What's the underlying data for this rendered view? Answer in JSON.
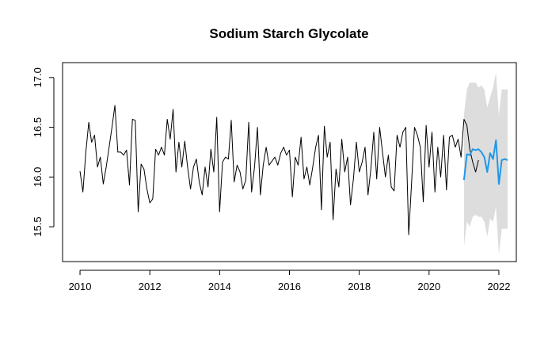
{
  "chart_data": {
    "type": "line",
    "title": "Sodium Starch Glycolate",
    "xlabel": "",
    "ylabel": "",
    "xlim": [
      2009.5,
      2022.5
    ],
    "ylim": [
      15.15,
      17.15
    ],
    "x_ticks": [
      {
        "value": 2010,
        "label": "2010"
      },
      {
        "value": 2012,
        "label": "2012"
      },
      {
        "value": 2014,
        "label": "2014"
      },
      {
        "value": 2016,
        "label": "2016"
      },
      {
        "value": 2018,
        "label": "2018"
      },
      {
        "value": 2020,
        "label": "2020"
      },
      {
        "value": 2022,
        "label": "2022"
      }
    ],
    "y_ticks": [
      {
        "value": 15.5,
        "label": "15.5"
      },
      {
        "value": 16.0,
        "label": "16.0"
      },
      {
        "value": 16.5,
        "label": "16.5"
      },
      {
        "value": 17.0,
        "label": "17.0"
      }
    ],
    "grid": false,
    "legend": "none",
    "colors": {
      "history": "#000000",
      "forecast": "#2297e6",
      "band": "#dddddd",
      "axis": "#000000"
    },
    "series": [
      {
        "role": "history",
        "x_start": 2010.0,
        "x_step": 0.0833333,
        "values": [
          16.06,
          15.85,
          16.25,
          16.55,
          16.35,
          16.42,
          16.1,
          16.2,
          15.93,
          16.1,
          16.3,
          16.5,
          16.72,
          16.25,
          16.25,
          16.22,
          16.27,
          15.92,
          16.58,
          16.57,
          15.65,
          16.13,
          16.08,
          15.88,
          15.74,
          15.78,
          16.28,
          16.22,
          16.3,
          16.22,
          16.58,
          16.38,
          16.68,
          16.05,
          16.35,
          16.1,
          16.36,
          16.1,
          15.88,
          16.1,
          16.18,
          15.95,
          15.82,
          16.1,
          15.9,
          16.28,
          16.05,
          16.6,
          15.65,
          16.15,
          16.2,
          16.18,
          16.57,
          15.95,
          16.12,
          16.05,
          15.88,
          15.97,
          16.55,
          15.85,
          16.1,
          16.5,
          15.82,
          16.12,
          16.3,
          16.12,
          16.16,
          16.2,
          16.12,
          16.24,
          16.3,
          16.22,
          16.27,
          15.8,
          16.2,
          16.12,
          16.4,
          15.98,
          16.1,
          15.92,
          16.1,
          16.3,
          16.42,
          15.67,
          16.51,
          16.2,
          16.35,
          15.57,
          16.08,
          15.9,
          16.38,
          16.05,
          16.2,
          15.72,
          15.98,
          16.35,
          16.05,
          16.15,
          16.3,
          15.82,
          16.08,
          16.45,
          15.98,
          16.5,
          16.25,
          16.0,
          16.22,
          15.9,
          15.86,
          16.42,
          16.3,
          16.45,
          16.5,
          15.42,
          15.95,
          16.5,
          16.42,
          16.3,
          15.75,
          16.52,
          16.1,
          16.45,
          15.85,
          16.3,
          16.0,
          16.42,
          15.87,
          16.4,
          16.42,
          16.3,
          16.38,
          16.2,
          16.58,
          16.52,
          16.28,
          16.15,
          16.05,
          16.17
        ]
      },
      {
        "role": "forecast",
        "x_start": 2021.0,
        "x_step": 0.0833333,
        "values": [
          15.97,
          16.23,
          16.22,
          16.28,
          16.27,
          16.28,
          16.25,
          16.2,
          16.05,
          16.24,
          16.18,
          16.37,
          15.93,
          16.17,
          16.18,
          16.17
        ]
      }
    ],
    "band": {
      "x_start": 2021.0,
      "x_step": 0.0833333,
      "upper": [
        16.63,
        16.88,
        16.95,
        16.95,
        16.95,
        16.9,
        16.92,
        16.88,
        16.7,
        16.8,
        16.9,
        17.05,
        16.62,
        16.88,
        16.88,
        16.88
      ],
      "lower": [
        15.3,
        15.55,
        15.5,
        15.6,
        15.62,
        15.6,
        15.6,
        15.55,
        15.4,
        15.58,
        15.55,
        15.7,
        15.22,
        15.48,
        15.48,
        15.48
      ]
    }
  }
}
